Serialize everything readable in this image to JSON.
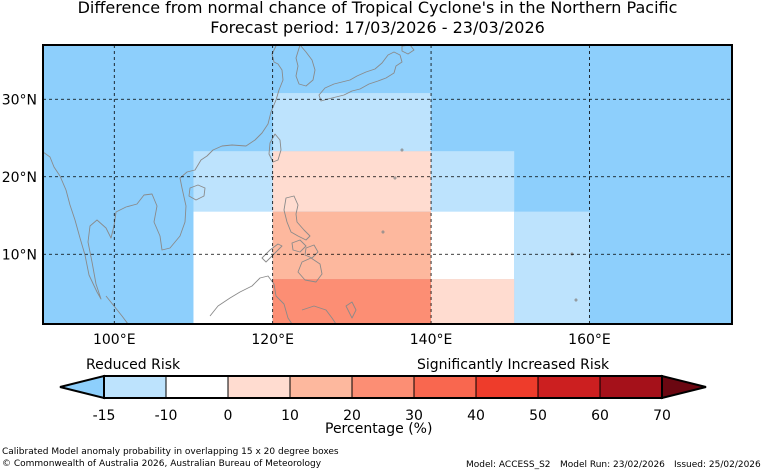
{
  "title": "Difference from normal chance of Tropical Cyclone's in the Northern Pacific",
  "subtitle": "Forecast period: 17/03/2026 - 23/03/2026",
  "map": {
    "lon_range": [
      91,
      178
    ],
    "lat_range": [
      1,
      37
    ],
    "lat_ticks": [
      {
        "value": 10,
        "label": "10°N"
      },
      {
        "value": 20,
        "label": "20°N"
      },
      {
        "value": 30,
        "label": "30°N"
      }
    ],
    "lon_ticks": [
      {
        "value": 100,
        "label": "100°E"
      },
      {
        "value": 120,
        "label": "120°E"
      },
      {
        "value": 140,
        "label": "140°E"
      },
      {
        "value": 160,
        "label": "160°E"
      }
    ],
    "background_color": "#8dcffc",
    "grid": true,
    "cells": [
      {
        "lon": [
          120,
          140
        ],
        "lat": [
          23.3,
          30.8
        ],
        "color": "#bde3fd"
      },
      {
        "lon": [
          110,
          120
        ],
        "lat": [
          15.5,
          23.3
        ],
        "color": "#bde3fd"
      },
      {
        "lon": [
          120,
          140
        ],
        "lat": [
          15.5,
          23.3
        ],
        "color": "#ffdcd0"
      },
      {
        "lon": [
          140,
          150.5
        ],
        "lat": [
          15.5,
          23.3
        ],
        "color": "#bde3fd"
      },
      {
        "lon": [
          110,
          120
        ],
        "lat": [
          1,
          15.5
        ],
        "color": "#ffffff"
      },
      {
        "lon": [
          120,
          140
        ],
        "lat": [
          6.8,
          15.5
        ],
        "color": "#fdb89e"
      },
      {
        "lon": [
          140,
          150.5
        ],
        "lat": [
          6.8,
          15.5
        ],
        "color": "#ffffff"
      },
      {
        "lon": [
          150.5,
          160
        ],
        "lat": [
          1,
          15.5
        ],
        "color": "#bde3fd"
      },
      {
        "lon": [
          120,
          140
        ],
        "lat": [
          1,
          6.8
        ],
        "color": "#fc8e74"
      },
      {
        "lon": [
          140,
          150.5
        ],
        "lat": [
          1,
          6.8
        ],
        "color": "#ffdcd0"
      }
    ]
  },
  "legend": {
    "reduced_label": "Reduced Risk",
    "increased_label": "Significantly Increased Risk",
    "axis_label": "Percentage (%)",
    "ticks": [
      "-15",
      "-10",
      "0",
      "10",
      "20",
      "30",
      "40",
      "50",
      "60",
      "70"
    ],
    "under_color": "#8dcffc",
    "over_color": "#6b0711",
    "colors": [
      "#bde3fd",
      "#ffffff",
      "#ffdcd0",
      "#fdb89e",
      "#fc8e74",
      "#f9674f",
      "#ee3c2b",
      "#cc1f20",
      "#a5111a"
    ]
  },
  "footer": {
    "description": "Calibrated Model anomaly probability in overlapping 15 x 20 degree boxes",
    "copyright": "© Commonwealth of Australia 2026, Australian Bureau of Meteorology",
    "model": "Model: ACCESS_S2",
    "model_run": "Model Run: 23/02/2026",
    "issued": "Issued: 25/02/2026"
  }
}
